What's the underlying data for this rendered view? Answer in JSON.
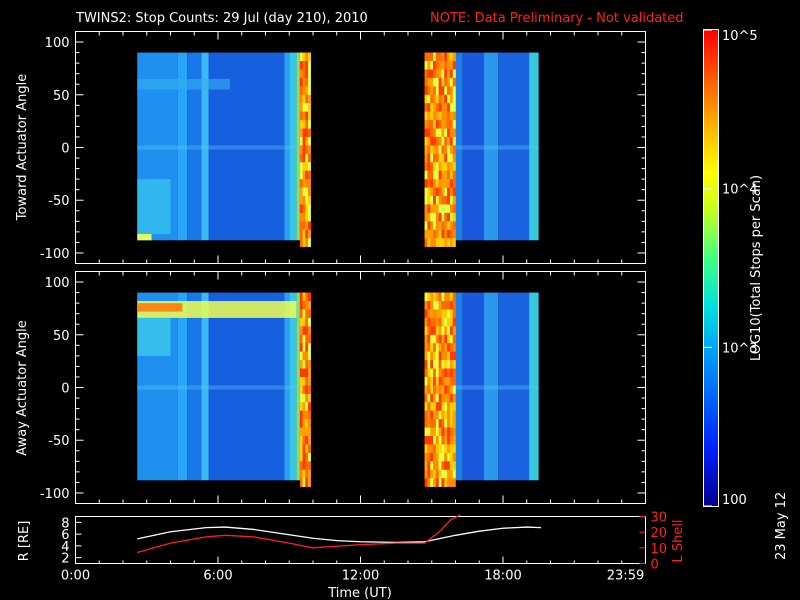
{
  "title": "TWINS2: Stop Counts: 29 Jul (day 210), 2010",
  "note": "NOTE: Data Preliminary - Not validated",
  "date_stamp": "23 May 12",
  "colors": {
    "background": "#000000",
    "axes": "#ffffff",
    "note": "#ff2020",
    "r_line": "#ffffff",
    "l_shell_line": "#ff2020"
  },
  "chart_data": [
    {
      "type": "heatmap",
      "ylabel": "Toward Actuator Angle",
      "ylim": [
        -110,
        110
      ],
      "y_ticks": [
        "100",
        "50",
        "0",
        "-50",
        "-100"
      ],
      "xlim": [
        0,
        24
      ],
      "x_tick_labels": []
    },
    {
      "type": "heatmap",
      "ylabel": "Away Actuator Angle",
      "ylim": [
        -110,
        110
      ],
      "y_ticks": [
        "100",
        "50",
        "0",
        "-50",
        "-100"
      ],
      "xlim": [
        0,
        24
      ],
      "x_tick_labels": []
    },
    {
      "type": "line",
      "xlabel": "Time (UT)",
      "x_tick_labels": [
        "0:00",
        "6:00",
        "12:00",
        "18:00",
        "23:59"
      ],
      "ylabel": "R [RE]",
      "ylim": [
        1,
        9
      ],
      "y_ticks": [
        "8",
        "6",
        "4",
        "2"
      ],
      "ylabel_right": "L Shell",
      "ylim_right": [
        0,
        30
      ],
      "y_ticks_right": [
        "30",
        "20",
        "10",
        "0"
      ],
      "series": [
        {
          "name": "R [RE]",
          "x": [
            2.6,
            4,
            5.5,
            6.3,
            7.5,
            9,
            10,
            11,
            12,
            13.5,
            14.7,
            16,
            17,
            18,
            19,
            19.6
          ],
          "values": [
            5.2,
            6.4,
            7.1,
            7.2,
            6.8,
            5.9,
            5.3,
            4.9,
            4.7,
            4.6,
            4.7,
            5.8,
            6.5,
            7.0,
            7.2,
            7.1
          ]
        },
        {
          "name": "L Shell",
          "x": [
            2.6,
            4,
            5.5,
            6.3,
            7.5,
            9,
            10,
            11,
            12,
            13.5,
            14.7,
            15.3,
            15.8,
            16.2
          ],
          "values": [
            7,
            13,
            17,
            18,
            17,
            13,
            10,
            11,
            12,
            13,
            13,
            20,
            28,
            31
          ]
        }
      ]
    },
    {
      "type": "heatmap",
      "ylabel": "LOG10(Total Stops per Scan)",
      "colorbar_ticks": [
        "10^5",
        "10^4",
        "10^3",
        "100"
      ],
      "zlim": [
        100,
        100000
      ],
      "log_scale": true
    }
  ]
}
